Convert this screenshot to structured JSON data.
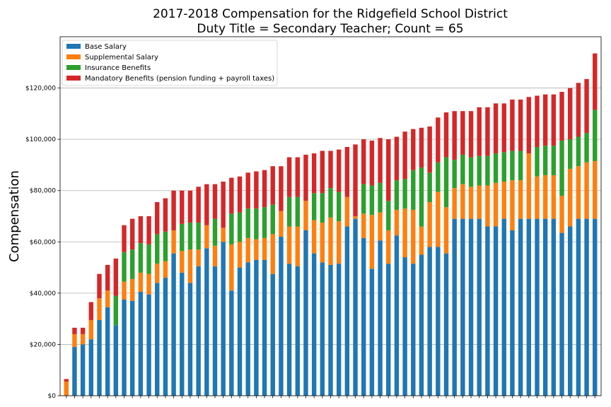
{
  "chart_data": {
    "type": "bar",
    "stacked": true,
    "title": "2017-2018 Compensation for the Ridgefield School District",
    "subtitle": "Duty Title = Secondary Teacher; Count = 65",
    "xlabel": "",
    "ylabel": "Compensation",
    "ylim": [
      0,
      140000
    ],
    "yticks": [
      0,
      20000,
      40000,
      60000,
      80000,
      100000,
      120000
    ],
    "ytick_labels": [
      "$0",
      "$20,000",
      "$40,000",
      "$60,000",
      "$80,000",
      "$100,000",
      "$120,000"
    ],
    "grid": true,
    "legend_position": "top-left",
    "series": [
      {
        "name": "Base Salary",
        "color": "#1f77b4",
        "values": [
          0,
          19000,
          20000,
          22000,
          29500,
          34500,
          27500,
          37500,
          37000,
          40500,
          39500,
          44000,
          46000,
          55500,
          48000,
          44000,
          50500,
          57500,
          50500,
          60000,
          41000,
          50000,
          52000,
          53000,
          53000,
          47500,
          62000,
          51500,
          50500,
          64500,
          55500,
          52000,
          51000,
          51500,
          66000,
          69000,
          61500,
          49500,
          60500,
          51500,
          62500,
          54000,
          51500,
          55000,
          58000,
          58000,
          55500,
          69000,
          69000,
          69000,
          69000,
          66000,
          66000,
          69000,
          64500,
          69000,
          69000,
          69000,
          69000,
          69000,
          63500,
          66000,
          69000,
          69000,
          69000
        ]
      },
      {
        "name": "Supplemental Salary",
        "color": "#ff7f0e",
        "values": [
          5500,
          5000,
          4000,
          7500,
          8500,
          6500,
          0,
          7000,
          8500,
          7500,
          8000,
          7500,
          6500,
          9000,
          8500,
          13000,
          6500,
          9000,
          8000,
          5500,
          18000,
          10000,
          9500,
          8000,
          8500,
          15500,
          10000,
          14500,
          15500,
          11500,
          13000,
          15500,
          18500,
          16500,
          11500,
          1000,
          9500,
          21000,
          11000,
          13000,
          10000,
          19000,
          21000,
          11000,
          17500,
          21500,
          18000,
          12000,
          13500,
          12500,
          13000,
          16000,
          17000,
          14500,
          19500,
          15000,
          25500,
          16500,
          17000,
          17000,
          14500,
          22500,
          20500,
          22000,
          22500
        ]
      },
      {
        "name": "Insurance Benefits",
        "color": "#2ca02c",
        "values": [
          0,
          0,
          0,
          0,
          0,
          0,
          11500,
          11500,
          11500,
          11500,
          11500,
          11500,
          11500,
          0,
          10500,
          10500,
          10500,
          0,
          10500,
          0,
          12000,
          11500,
          11500,
          12000,
          12000,
          11500,
          0,
          11500,
          11500,
          0,
          10500,
          11500,
          11500,
          11500,
          0,
          0,
          11500,
          11500,
          11500,
          11500,
          11500,
          11500,
          15500,
          23000,
          11500,
          11500,
          19500,
          11000,
          11500,
          11500,
          11500,
          11500,
          11500,
          11500,
          11500,
          11500,
          0,
          11500,
          11500,
          11500,
          21500,
          11500,
          11500,
          11500,
          20000
        ]
      },
      {
        "name": "Mandatory Benefits (pension funding + payroll taxes)",
        "color": "#d62728",
        "values": [
          1000,
          2500,
          2500,
          7000,
          9500,
          10000,
          14500,
          10500,
          12000,
          10500,
          11000,
          12500,
          13000,
          15500,
          13000,
          12500,
          14000,
          16000,
          13500,
          18000,
          14000,
          14000,
          14000,
          14500,
          14500,
          15000,
          17500,
          15500,
          15500,
          18000,
          15500,
          16500,
          14500,
          16500,
          19500,
          28000,
          17500,
          17500,
          17500,
          24000,
          17000,
          18500,
          16000,
          15500,
          18000,
          17500,
          17500,
          19000,
          17000,
          18000,
          19000,
          19000,
          19500,
          19000,
          20000,
          20000,
          22000,
          20000,
          20000,
          20000,
          19000,
          20000,
          21000,
          21000,
          22000
        ]
      }
    ]
  }
}
